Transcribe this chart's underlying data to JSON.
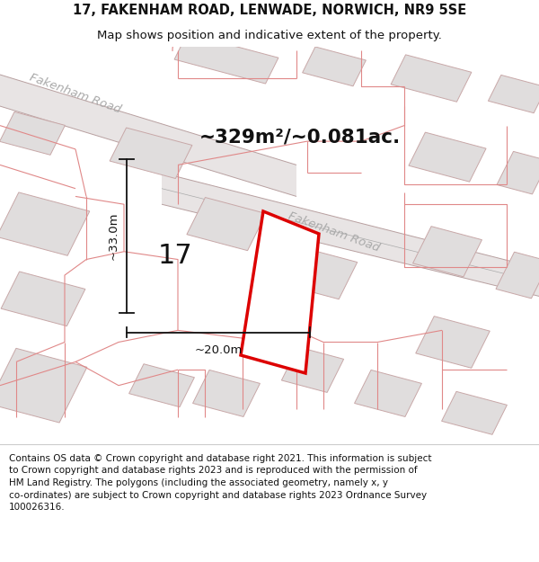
{
  "title_line1": "17, FAKENHAM ROAD, LENWADE, NORWICH, NR9 5SE",
  "title_line2": "Map shows position and indicative extent of the property.",
  "area_text": "~329m²/~0.081ac.",
  "property_number": "17",
  "dim_width": "~20.0m",
  "dim_height": "~33.0m",
  "map_background": "#f7f5f5",
  "footer_text": "Contains OS data © Crown copyright and database right 2021. This information is subject to Crown copyright and database rights 2023 and is reproduced with the permission of HM Land Registry. The polygons (including the associated geometry, namely x, y co-ordinates) are subject to Crown copyright and database rights 2023 Ordnance Survey 100026316.",
  "road_label1": "Fakenham Road",
  "road_label2": "Fakenham Road",
  "building_color": "#e0dddd",
  "building_edge": "#c8a8a8",
  "road_fill": "#e8e4e4",
  "road_edge": "#c8a8a8",
  "property_outline_color": "#dd0000",
  "boundary_color": "#e08888",
  "dim_color": "#111111",
  "road_centerline": "#aaaaaa"
}
